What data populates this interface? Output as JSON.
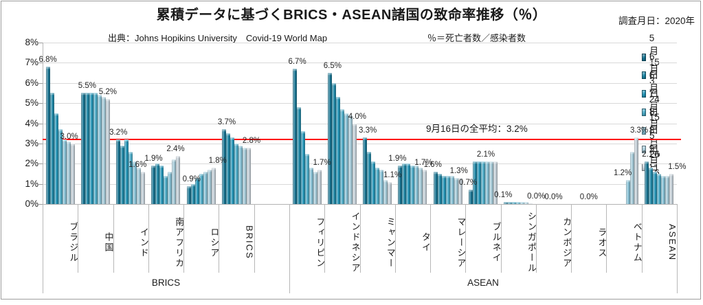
{
  "chart_data": {
    "type": "bar",
    "title": "累積データに基づくBRICS・ASEAN諸国の致命率推移（％）",
    "survey_note": "調査月日：2020年",
    "source": "出典：Johns Hopikins University　Covid-19 World Map",
    "formula_note": "％＝死亡者数／感染者数",
    "ylim": [
      0,
      8
    ],
    "y_tick_step": 1,
    "y_tick_labels": [
      "0%",
      "1%",
      "2%",
      "3%",
      "4%",
      "5%",
      "6%",
      "7%",
      "8%"
    ],
    "grid": true,
    "legend_position": "right",
    "series_dates": [
      "5月15日",
      "6月3日",
      "6月24日",
      "7月15日",
      "8月5日",
      "8月26日",
      "9月16日"
    ],
    "series_colors": [
      "#15718f",
      "#1c84a3",
      "#2192b4",
      "#4aa9c5",
      "#84bed3",
      "#a3c8d6",
      "#c2cdd5"
    ],
    "average_line": {
      "value": 3.2,
      "color": "#fe0000",
      "label": "9月16日の全平均：3.2%"
    },
    "group_labels": [
      "BRICS",
      "ASEAN"
    ],
    "categories": [
      {
        "label": "ブラジル",
        "group": "BRICS",
        "values": [
          6.8,
          5.5,
          4.5,
          3.7,
          3.2,
          3.1,
          3.0
        ],
        "annotations": [
          {
            "series": 0,
            "text": "6.8%"
          },
          {
            "series": 6,
            "text": "3.0%",
            "dx": -5
          }
        ]
      },
      {
        "label": "中国",
        "group": "BRICS",
        "values": [
          5.5,
          5.5,
          5.5,
          5.5,
          5.4,
          5.3,
          5.2
        ],
        "annotations": [
          {
            "series": 0,
            "text": "5.5%",
            "dx": 6
          },
          {
            "series": 6,
            "text": "5.2%"
          }
        ]
      },
      {
        "label": "インド",
        "group": "BRICS",
        "values": [
          3.2,
          2.9,
          3.2,
          2.6,
          2.1,
          1.8,
          1.6
        ],
        "annotations": [
          {
            "series": 0,
            "text": "3.2%"
          },
          {
            "series": 6,
            "text": "1.6%",
            "dx": -8
          }
        ]
      },
      {
        "label": "南アフリカ",
        "group": "BRICS",
        "values": [
          1.9,
          2.0,
          1.9,
          1.4,
          1.6,
          2.2,
          2.4
        ],
        "annotations": [
          {
            "series": 0,
            "text": "1.9%"
          },
          {
            "series": 6,
            "text": "2.4%",
            "dx": -4
          }
        ]
      },
      {
        "label": "ロシア",
        "group": "BRICS",
        "values": [
          0.9,
          1.0,
          1.3,
          1.5,
          1.6,
          1.7,
          1.8
        ],
        "annotations": [
          {
            "series": 0,
            "text": "0.9%",
            "dx": 4
          },
          {
            "series": 6,
            "text": "1.8%",
            "dx": 6
          }
        ]
      },
      {
        "label": "BRICS",
        "group": "BRICS",
        "values": [
          3.7,
          3.5,
          3.3,
          3.0,
          2.9,
          2.8,
          2.8
        ],
        "annotations": [
          {
            "series": 0,
            "text": "3.7%",
            "dx": 4
          },
          {
            "series": 6,
            "text": "2.8%",
            "dx": 4
          }
        ]
      },
      {
        "label": "",
        "group": "BRICS",
        "spacer": true,
        "values": [],
        "annotations": []
      },
      {
        "label": "フィリピン",
        "group": "ASEAN",
        "values": [
          6.7,
          4.8,
          3.6,
          2.5,
          1.8,
          1.6,
          1.7
        ],
        "annotations": [
          {
            "series": 0,
            "text": "6.7%",
            "dx": 4
          },
          {
            "series": 6,
            "text": "1.7%",
            "dx": 4
          }
        ]
      },
      {
        "label": "インドネシア",
        "group": "ASEAN",
        "values": [
          6.5,
          6.0,
          5.3,
          4.7,
          4.5,
          4.4,
          4.0
        ],
        "annotations": [
          {
            "series": 0,
            "text": "6.5%",
            "dx": 4
          },
          {
            "series": 6,
            "text": "4.0%",
            "dx": 4
          }
        ]
      },
      {
        "label": "ミャンマー",
        "group": "ASEAN",
        "values": [
          3.3,
          2.6,
          2.1,
          1.8,
          1.7,
          1.2,
          1.1
        ],
        "annotations": [
          {
            "series": 0,
            "text": "3.3%",
            "dx": 4
          },
          {
            "series": 6,
            "text": "1.1%",
            "dx": 4
          }
        ]
      },
      {
        "label": "タイ",
        "group": "ASEAN",
        "values": [
          1.9,
          2.0,
          2.0,
          1.9,
          1.9,
          1.8,
          1.7
        ],
        "annotations": [
          {
            "series": 0,
            "text": "1.9%",
            "dx": -4
          },
          {
            "series": 6,
            "text": "1.7%",
            "dx": -2
          }
        ]
      },
      {
        "label": "マレーシア",
        "group": "ASEAN",
        "values": [
          1.6,
          1.5,
          1.4,
          1.4,
          1.4,
          1.3,
          1.3
        ],
        "annotations": [
          {
            "series": 0,
            "text": "1.6%",
            "dx": -4
          },
          {
            "series": 6,
            "text": "1.3%",
            "dx": -2
          }
        ]
      },
      {
        "label": "ブルネイ",
        "group": "ASEAN",
        "values": [
          0.7,
          2.1,
          2.1,
          2.1,
          2.1,
          2.1,
          2.1
        ],
        "annotations": [
          {
            "series": 0,
            "text": "0.7%",
            "dx": -4
          },
          {
            "series": 3,
            "text": "2.1%",
            "dx": 4
          }
        ]
      },
      {
        "label": "シンガポール",
        "group": "ASEAN",
        "values": [
          0.1,
          0.1,
          0.1,
          0.1,
          0.1,
          0.1,
          0.05
        ],
        "annotations": [
          {
            "series": 0,
            "text": "0.1%",
            "dx": -4
          },
          {
            "series": 6,
            "text": "0.0%",
            "dx": 8
          }
        ]
      },
      {
        "label": "カンボジア",
        "group": "ASEAN",
        "values": [
          0,
          0,
          0,
          0,
          0,
          0,
          0
        ],
        "annotations": [
          {
            "series": 3,
            "text": "0.0%"
          }
        ]
      },
      {
        "label": "ラオス",
        "group": "ASEAN",
        "values": [
          0,
          0,
          0,
          0,
          0,
          0,
          0
        ],
        "annotations": [
          {
            "series": 3,
            "text": "0.0%"
          }
        ]
      },
      {
        "label": "ベトナム",
        "group": "ASEAN",
        "values": [
          0,
          0,
          0,
          0,
          1.2,
          2.6,
          3.3
        ],
        "annotations": [
          {
            "series": 4,
            "text": "1.2%",
            "dx": -8
          },
          {
            "series": 6,
            "text": "3.3%",
            "dx": 4
          }
        ]
      },
      {
        "label": "ASEAN",
        "group": "ASEAN",
        "values": [
          2.1,
          1.8,
          1.6,
          1.5,
          1.4,
          1.4,
          1.5
        ],
        "annotations": [
          {
            "series": 0,
            "text": "2.1%",
            "dx": 6
          },
          {
            "series": 6,
            "text": "1.5%",
            "dx": 8
          }
        ]
      }
    ]
  }
}
